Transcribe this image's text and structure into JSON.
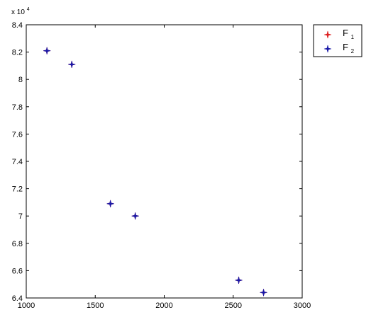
{
  "chart_data": {
    "type": "scatter",
    "title": "",
    "xlabel": "",
    "ylabel": "",
    "xlim": [
      1000,
      3000
    ],
    "ylim": [
      64000,
      84000
    ],
    "x_ticks": [
      1000,
      1500,
      2000,
      2500,
      3000
    ],
    "y_ticks": [
      64000,
      66000,
      68000,
      70000,
      72000,
      74000,
      76000,
      78000,
      80000,
      82000,
      84000
    ],
    "x_tick_labels": [
      "1000",
      "1500",
      "2000",
      "2500",
      "3000"
    ],
    "y_tick_labels": [
      "6.4",
      "6.6",
      "6.8",
      "7",
      "7.2",
      "7.4",
      "7.6",
      "7.8",
      "8",
      "8.2",
      "8.4"
    ],
    "y_multiplier_base": "x 10",
    "y_multiplier_exponent": "4",
    "grid": false,
    "legend_position": "outside-top-right",
    "series": [
      {
        "name": "F1",
        "name_main": "F",
        "name_sub": "1",
        "color": "#dd2222",
        "marker": "star",
        "points": [
          [
            1150,
            82100
          ],
          [
            1330,
            81100
          ],
          [
            1610,
            70900
          ],
          [
            1790,
            70000
          ],
          [
            2540,
            65300
          ],
          [
            2720,
            64400
          ]
        ]
      },
      {
        "name": "F2",
        "name_main": "F",
        "name_sub": "2",
        "color": "#1a1aa8",
        "marker": "star",
        "points": [
          [
            1150,
            82100
          ],
          [
            1330,
            81100
          ],
          [
            1610,
            70900
          ],
          [
            1790,
            70000
          ],
          [
            2540,
            65300
          ],
          [
            2720,
            64400
          ]
        ]
      }
    ]
  }
}
